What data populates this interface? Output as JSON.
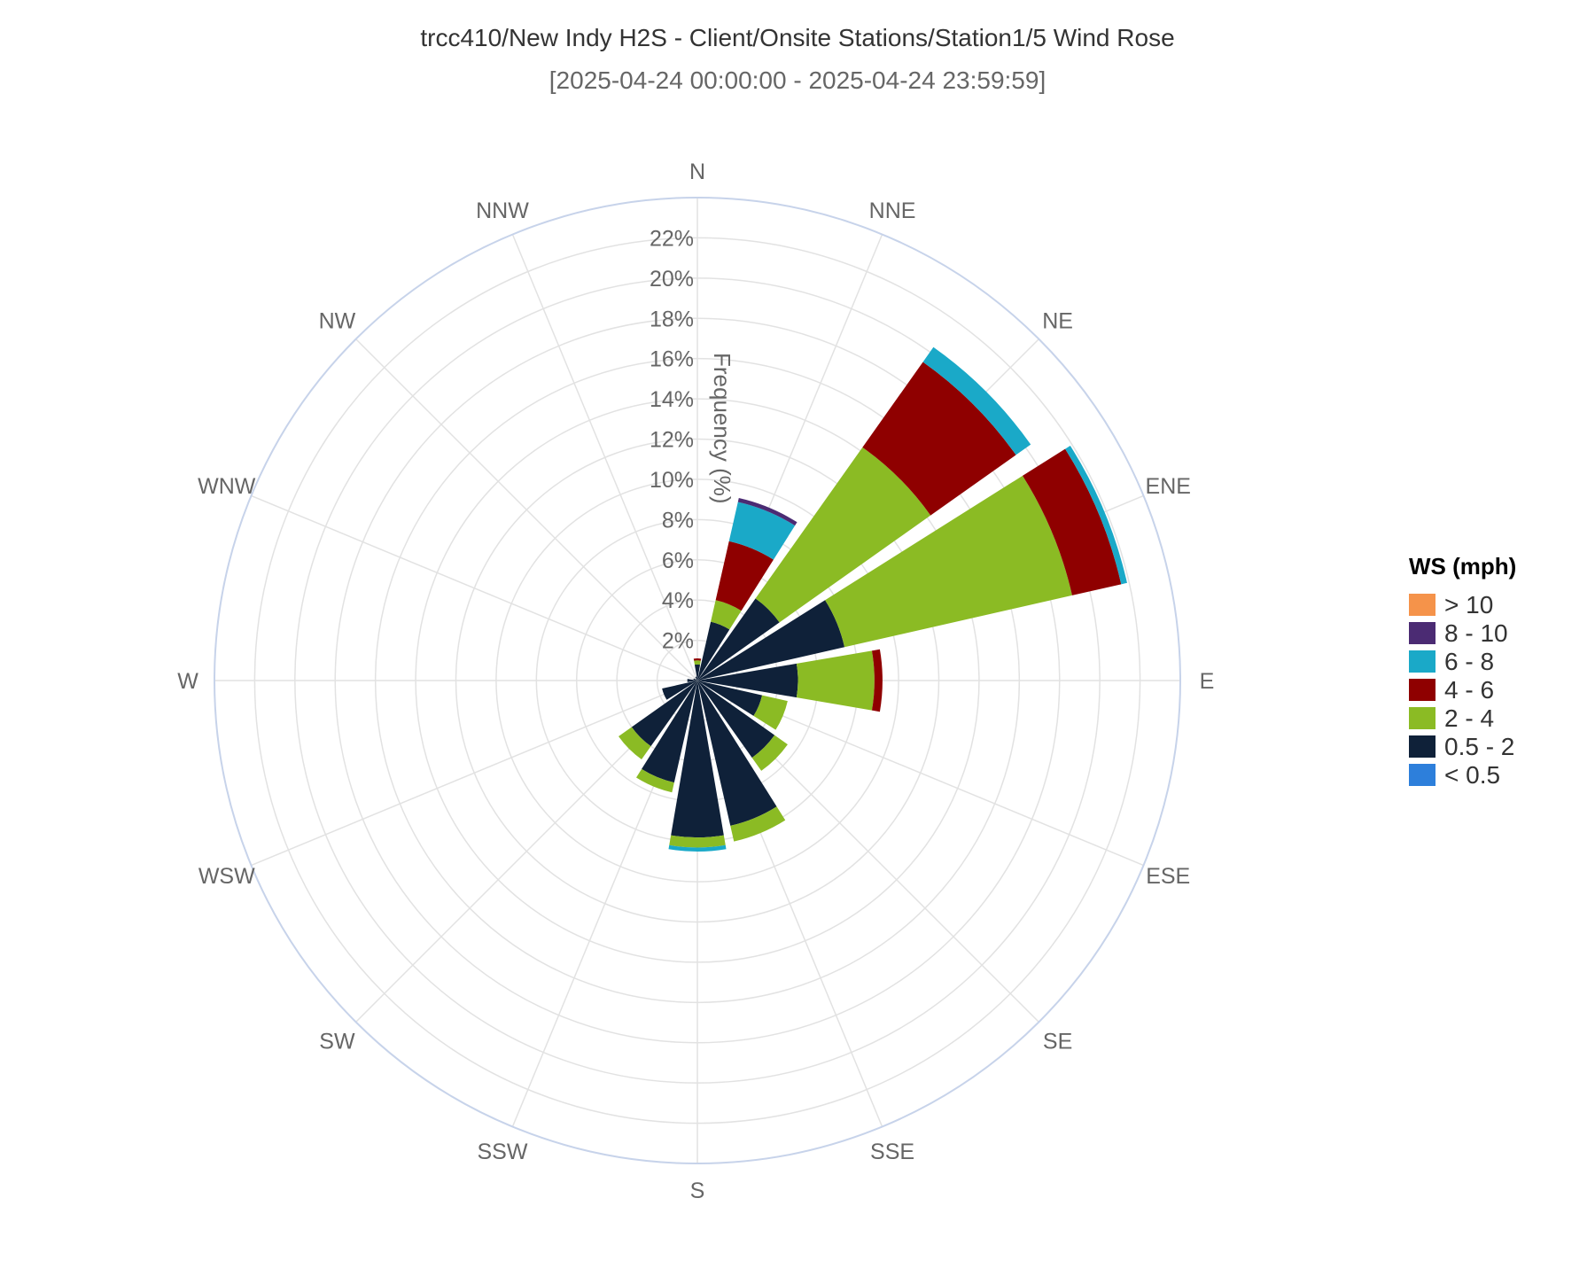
{
  "chart_data": {
    "type": "windrose",
    "title": "trcc410/New Indy H2S - Client/Onsite Stations/Station1/5 Wind Rose",
    "subtitle": "[2025-04-24 00:00:00 - 2025-04-24 23:59:59]",
    "radial_axis_title": "Frequency (%)",
    "radial_range": [
      0,
      24
    ],
    "radial_ticks": [
      "2%",
      "4%",
      "6%",
      "8%",
      "10%",
      "12%",
      "14%",
      "16%",
      "18%",
      "20%",
      "22%"
    ],
    "directions": [
      "N",
      "NNE",
      "NE",
      "ENE",
      "E",
      "ESE",
      "SE",
      "SSE",
      "S",
      "SSW",
      "SW",
      "WSW",
      "W",
      "WNW",
      "NW",
      "NNW"
    ],
    "legend_title": "WS (mph)",
    "legend_placement": "right",
    "series": [
      {
        "name": "< 0.5",
        "color": "#2d7fdb",
        "values": [
          0,
          0,
          0,
          0,
          0,
          0,
          0,
          0,
          0,
          0,
          0,
          0,
          0,
          0,
          0,
          0
        ]
      },
      {
        "name": "0.5 - 2",
        "color": "#0f2139",
        "values": [
          0.8,
          3.0,
          5.0,
          7.5,
          5.0,
          3.3,
          4.7,
          7.4,
          7.8,
          5.2,
          4.0,
          1.8,
          0.5,
          0.2,
          0.1,
          0.2
        ]
      },
      {
        "name": "2 - 4",
        "color": "#8bbb24",
        "values": [
          0.2,
          1.1,
          9.2,
          11.6,
          3.8,
          1.3,
          0.8,
          0.8,
          0.5,
          0.5,
          0.8,
          0.0,
          0.0,
          0.0,
          0.0,
          0.0
        ]
      },
      {
        "name": "4 - 6",
        "color": "#8f0000",
        "values": [
          0.1,
          3.0,
          5.2,
          2.5,
          0.4,
          0.0,
          0.0,
          0.0,
          0.0,
          0.0,
          0.0,
          0.0,
          0.0,
          0.0,
          0.0,
          0.0
        ]
      },
      {
        "name": "6 - 8",
        "color": "#1aa9c8",
        "values": [
          0.0,
          2.0,
          0.9,
          0.3,
          0.0,
          0.0,
          0.0,
          0.0,
          0.2,
          0.0,
          0.0,
          0.0,
          0.0,
          0.0,
          0.0,
          0.0
        ]
      },
      {
        "name": "8 - 10",
        "color": "#4b2b73",
        "values": [
          0.0,
          0.2,
          0.0,
          0.0,
          0.0,
          0.0,
          0.0,
          0.0,
          0.0,
          0.0,
          0.0,
          0.0,
          0.0,
          0.0,
          0.0,
          0.0
        ]
      },
      {
        "name": "> 10",
        "color": "#f5934a",
        "values": [
          0,
          0,
          0,
          0,
          0,
          0,
          0,
          0,
          0,
          0,
          0,
          0,
          0,
          0,
          0,
          0
        ]
      }
    ],
    "grid": true
  }
}
